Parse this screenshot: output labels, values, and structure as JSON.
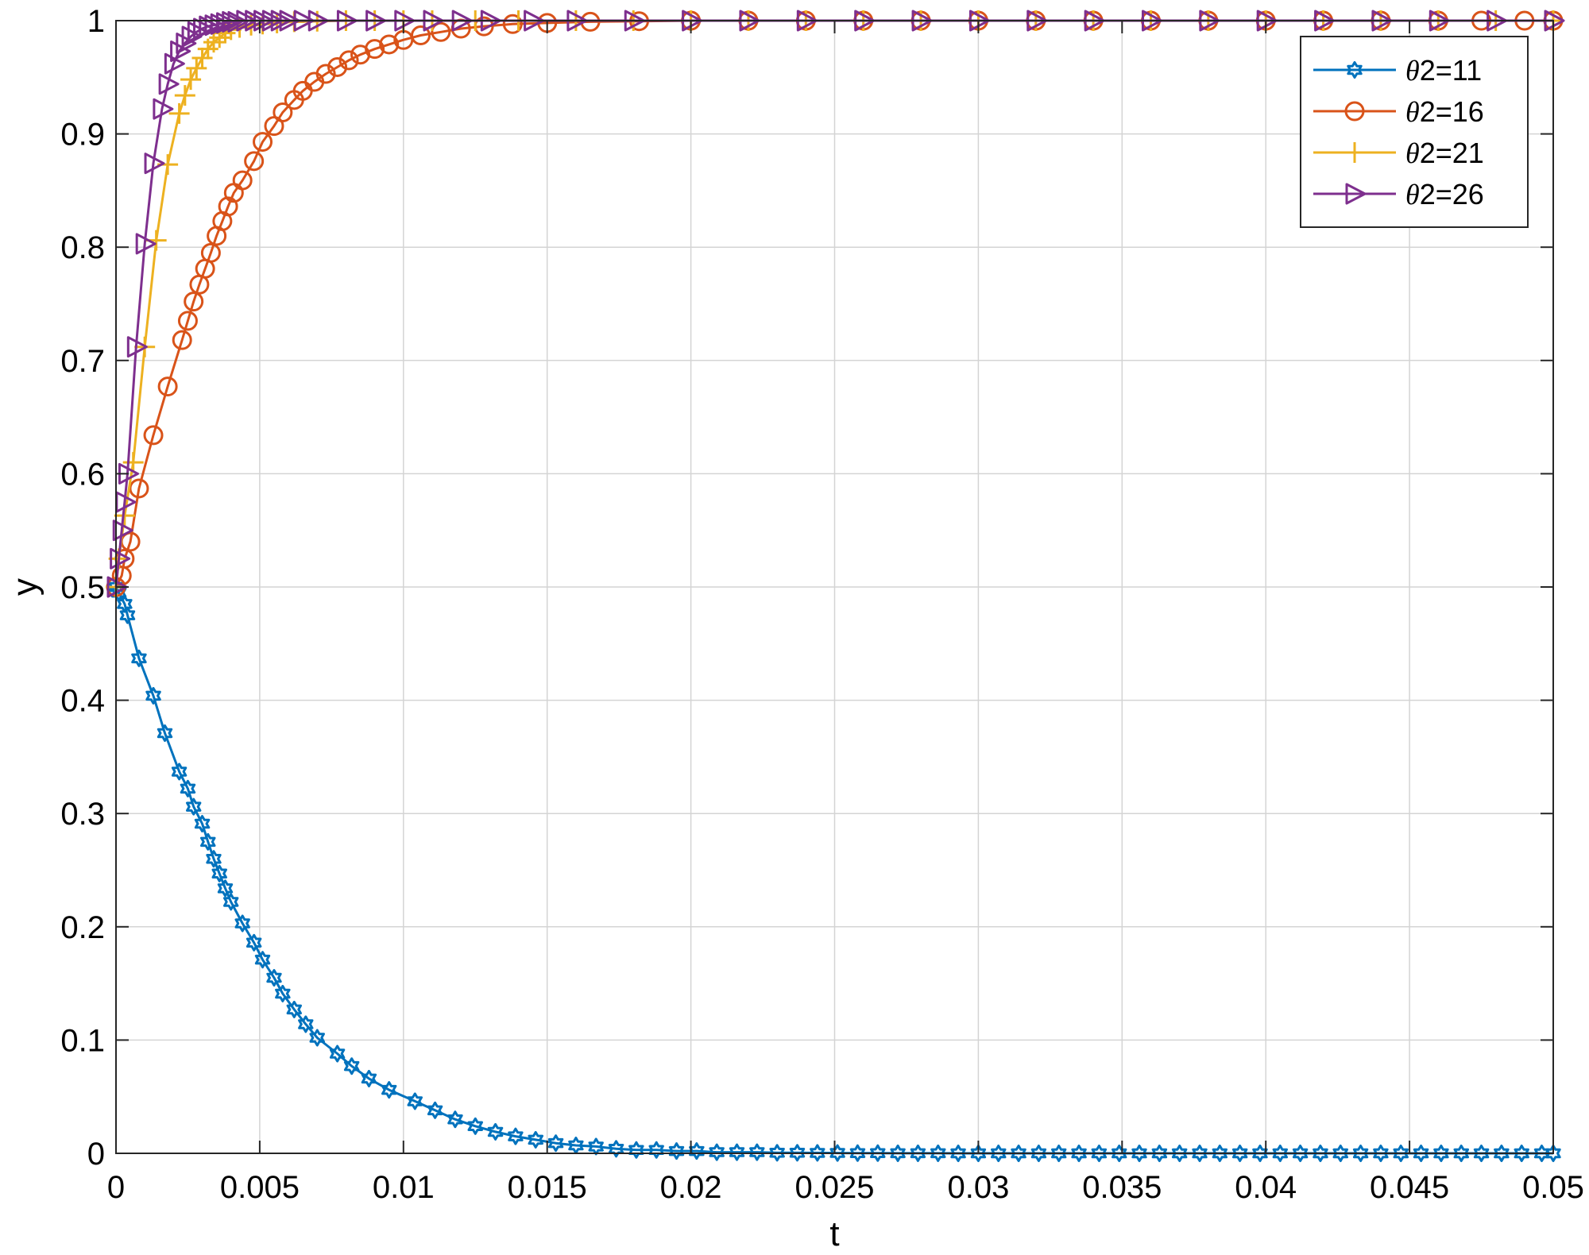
{
  "chart_data": {
    "type": "line",
    "title": "",
    "xlabel": "t",
    "ylabel": "y",
    "xlim": [
      0,
      0.05
    ],
    "ylim": [
      0,
      1
    ],
    "xticks": [
      0,
      0.005,
      0.01,
      0.015,
      0.02,
      0.025,
      0.03,
      0.035,
      0.04,
      0.045,
      0.05
    ],
    "xtick_labels": [
      "0",
      "0.005",
      "0.01",
      "0.015",
      "0.02",
      "0.025",
      "0.03",
      "0.035",
      "0.04",
      "0.045",
      "0.05"
    ],
    "yticks": [
      0,
      0.1,
      0.2,
      0.3,
      0.4,
      0.5,
      0.6,
      0.7,
      0.8,
      0.9,
      1
    ],
    "ytick_labels": [
      "0",
      "0.1",
      "0.2",
      "0.3",
      "0.4",
      "0.5",
      "0.6",
      "0.7",
      "0.8",
      "0.9",
      "1"
    ],
    "grid": true,
    "legend_position": "top-right",
    "series": [
      {
        "name": "θ2=11",
        "color": "#0072BD",
        "marker": "hexagram",
        "x": [
          0,
          0.0001,
          0.0003,
          0.0004,
          0.0008,
          0.0013,
          0.0017,
          0.0022,
          0.0025,
          0.0027,
          0.003,
          0.0032,
          0.0034,
          0.0036,
          0.0038,
          0.004,
          0.0044,
          0.0048,
          0.0051,
          0.0055,
          0.0058,
          0.0062,
          0.0066,
          0.007,
          0.0077,
          0.0082,
          0.0088,
          0.0095,
          0.0104,
          0.0111,
          0.0118,
          0.0125,
          0.0132,
          0.0139,
          0.0146,
          0.0153,
          0.016,
          0.0167,
          0.0174,
          0.0181,
          0.0188,
          0.0195,
          0.0202,
          0.0209,
          0.0216,
          0.0223,
          0.023,
          0.0237,
          0.0244,
          0.0251,
          0.0258,
          0.0265,
          0.0272,
          0.0279,
          0.0286,
          0.0293,
          0.03,
          0.0307,
          0.0314,
          0.0321,
          0.0328,
          0.0335,
          0.0342,
          0.0349,
          0.0356,
          0.0363,
          0.037,
          0.0377,
          0.0384,
          0.0391,
          0.0398,
          0.0405,
          0.0412,
          0.0419,
          0.0426,
          0.0433,
          0.044,
          0.0447,
          0.0454,
          0.0461,
          0.0468,
          0.0475,
          0.0482,
          0.0489,
          0.0496,
          0.05
        ],
        "y": [
          0.5,
          0.495,
          0.485,
          0.475,
          0.437,
          0.404,
          0.371,
          0.337,
          0.322,
          0.306,
          0.291,
          0.275,
          0.26,
          0.247,
          0.234,
          0.222,
          0.203,
          0.186,
          0.171,
          0.155,
          0.141,
          0.127,
          0.114,
          0.102,
          0.088,
          0.077,
          0.066,
          0.056,
          0.046,
          0.038,
          0.03,
          0.024,
          0.019,
          0.015,
          0.012,
          0.009,
          0.007,
          0.006,
          0.004,
          0.003,
          0.003,
          0.002,
          0.002,
          0.001,
          0.001,
          0.001,
          0.0005,
          0.0005,
          0.0004,
          0.0003,
          0.0002,
          0.0002,
          0.0001,
          0.0001,
          0.0001,
          0,
          0,
          0,
          0,
          0,
          0,
          0,
          0,
          0,
          0,
          0,
          0,
          0,
          0,
          0,
          0,
          0,
          0,
          0,
          0,
          0,
          0,
          0,
          0,
          0,
          0,
          0,
          0,
          0,
          0,
          0
        ]
      },
      {
        "name": "θ2=16",
        "color": "#D95319",
        "marker": "circle",
        "x": [
          0,
          0.0002,
          0.0003,
          0.0005,
          0.0008,
          0.0013,
          0.0018,
          0.0023,
          0.0025,
          0.0027,
          0.0029,
          0.0031,
          0.0033,
          0.0035,
          0.0037,
          0.0039,
          0.0041,
          0.0044,
          0.0048,
          0.0051,
          0.0055,
          0.0058,
          0.0062,
          0.0065,
          0.0069,
          0.0073,
          0.0077,
          0.0081,
          0.0085,
          0.009,
          0.0095,
          0.01,
          0.0106,
          0.0113,
          0.012,
          0.0128,
          0.0138,
          0.015,
          0.0165,
          0.0182,
          0.02,
          0.022,
          0.024,
          0.026,
          0.028,
          0.03,
          0.032,
          0.034,
          0.036,
          0.038,
          0.04,
          0.042,
          0.044,
          0.046,
          0.0475,
          0.049,
          0.05
        ],
        "y": [
          0.5,
          0.51,
          0.525,
          0.54,
          0.587,
          0.634,
          0.677,
          0.718,
          0.735,
          0.752,
          0.767,
          0.781,
          0.795,
          0.81,
          0.823,
          0.836,
          0.848,
          0.859,
          0.876,
          0.893,
          0.907,
          0.919,
          0.93,
          0.938,
          0.946,
          0.953,
          0.959,
          0.965,
          0.97,
          0.975,
          0.979,
          0.983,
          0.987,
          0.99,
          0.993,
          0.995,
          0.997,
          0.998,
          0.999,
          0.9995,
          1,
          1,
          1,
          1,
          1,
          1,
          1,
          1,
          1,
          1,
          1,
          1,
          1,
          1,
          1,
          1,
          1
        ]
      },
      {
        "name": "θ2=21",
        "color": "#EDB120",
        "marker": "plus",
        "x": [
          0,
          0.0001,
          0.0003,
          0.0006,
          0.001,
          0.0014,
          0.0018,
          0.0022,
          0.0024,
          0.0026,
          0.0028,
          0.003,
          0.0032,
          0.0034,
          0.0036,
          0.0038,
          0.004,
          0.0043,
          0.0047,
          0.0051,
          0.0056,
          0.0062,
          0.007,
          0.008,
          0.009,
          0.01,
          0.011,
          0.0125,
          0.014,
          0.016,
          0.018,
          0.02,
          0.022,
          0.024,
          0.026,
          0.028,
          0.03,
          0.032,
          0.034,
          0.036,
          0.038,
          0.04,
          0.042,
          0.044,
          0.046,
          0.048,
          0.05
        ],
        "y": [
          0.5,
          0.525,
          0.563,
          0.61,
          0.712,
          0.806,
          0.873,
          0.918,
          0.934,
          0.948,
          0.958,
          0.967,
          0.975,
          0.981,
          0.985,
          0.989,
          0.992,
          0.994,
          0.996,
          0.997,
          0.998,
          0.999,
          0.9995,
          1,
          1,
          1,
          1,
          1,
          1,
          1,
          1,
          1,
          1,
          1,
          1,
          1,
          1,
          1,
          1,
          1,
          1,
          1,
          1,
          1,
          1,
          1,
          1
        ]
      },
      {
        "name": "θ2=26",
        "color": "#7E2F8E",
        "marker": "triangle-right",
        "x": [
          0,
          0.0001,
          0.0002,
          0.0003,
          0.0004,
          0.0007,
          0.001,
          0.0013,
          0.0016,
          0.0018,
          0.002,
          0.0022,
          0.0024,
          0.0026,
          0.0028,
          0.003,
          0.0032,
          0.0034,
          0.0036,
          0.0038,
          0.004,
          0.0042,
          0.0045,
          0.0048,
          0.0051,
          0.0054,
          0.0057,
          0.006,
          0.0065,
          0.007,
          0.008,
          0.009,
          0.01,
          0.011,
          0.012,
          0.013,
          0.0145,
          0.016,
          0.018,
          0.02,
          0.022,
          0.024,
          0.026,
          0.028,
          0.03,
          0.032,
          0.034,
          0.036,
          0.038,
          0.04,
          0.042,
          0.044,
          0.046,
          0.048,
          0.05
        ],
        "y": [
          0.5,
          0.525,
          0.55,
          0.575,
          0.6,
          0.712,
          0.803,
          0.874,
          0.922,
          0.944,
          0.962,
          0.973,
          0.98,
          0.986,
          0.99,
          0.993,
          0.995,
          0.996,
          0.997,
          0.998,
          0.999,
          0.999,
          1,
          1,
          1,
          1,
          1,
          1,
          1,
          1,
          1,
          1,
          1,
          1,
          1,
          1,
          1,
          1,
          1,
          1,
          1,
          1,
          1,
          1,
          1,
          1,
          1,
          1,
          1,
          1,
          1,
          1,
          1,
          1,
          1
        ]
      }
    ]
  }
}
